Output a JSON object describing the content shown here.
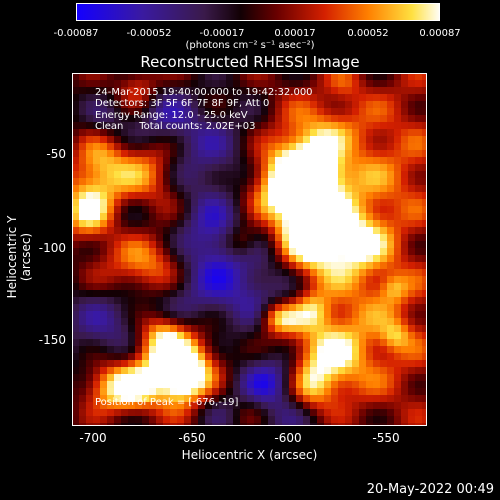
{
  "colorbar": {
    "ticks": [
      "-0.00087",
      "-0.00052",
      "-0.00017",
      "0.00017",
      "0.00052",
      "0.00087"
    ],
    "units": "(photons cm⁻² s⁻¹ asec⁻²)"
  },
  "title": "Reconstructed RHESSI Image",
  "info": {
    "line1": "24-Mar-2015 19:40:00.000 to 19:42:32.000",
    "line2": "Detectors: 3F 5F 6F 7F 8F 9F, Att 0",
    "line3": "Energy Range: 12.0 - 25.0 keV",
    "line4": "Clean     Total counts: 2.02E+03",
    "peak": "Position of Peak = [-676,-19]"
  },
  "axes": {
    "xlabel": "Heliocentric X (arcsec)",
    "ylabel": "Heliocentric Y (arcsec)",
    "xticks": [
      "-700",
      "-650",
      "-600",
      "-550"
    ],
    "yticks": [
      "-50",
      "-100",
      "-150"
    ]
  },
  "timestamp": "20-May-2022 00:49"
}
